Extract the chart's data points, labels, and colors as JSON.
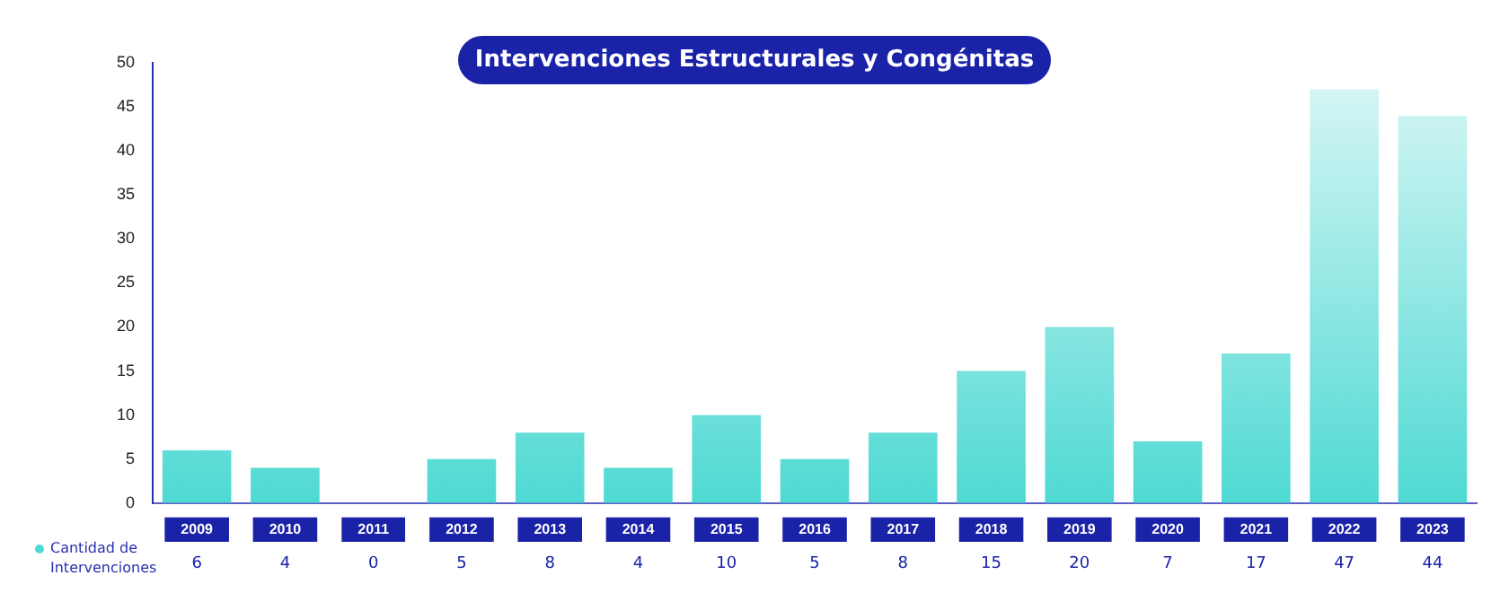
{
  "chart_data": {
    "type": "bar",
    "title": "Intervenciones Estructurales y Congénitas",
    "categories": [
      "2009",
      "2010",
      "2011",
      "2012",
      "2013",
      "2014",
      "2015",
      "2016",
      "2017",
      "2018",
      "2019",
      "2020",
      "2021",
      "2022",
      "2023"
    ],
    "series": [
      {
        "name": "Cantidad de Intervenciones",
        "color": "#4fd9d3",
        "values": [
          6,
          4,
          0,
          5,
          8,
          4,
          10,
          5,
          8,
          15,
          20,
          7,
          17,
          47,
          44
        ]
      }
    ],
    "ylim": [
      0,
      50
    ],
    "yticks": [
      0,
      5,
      10,
      15,
      20,
      25,
      30,
      35,
      40,
      45,
      50
    ],
    "grid": false,
    "legend": "bottom left",
    "data_labels": true
  }
}
